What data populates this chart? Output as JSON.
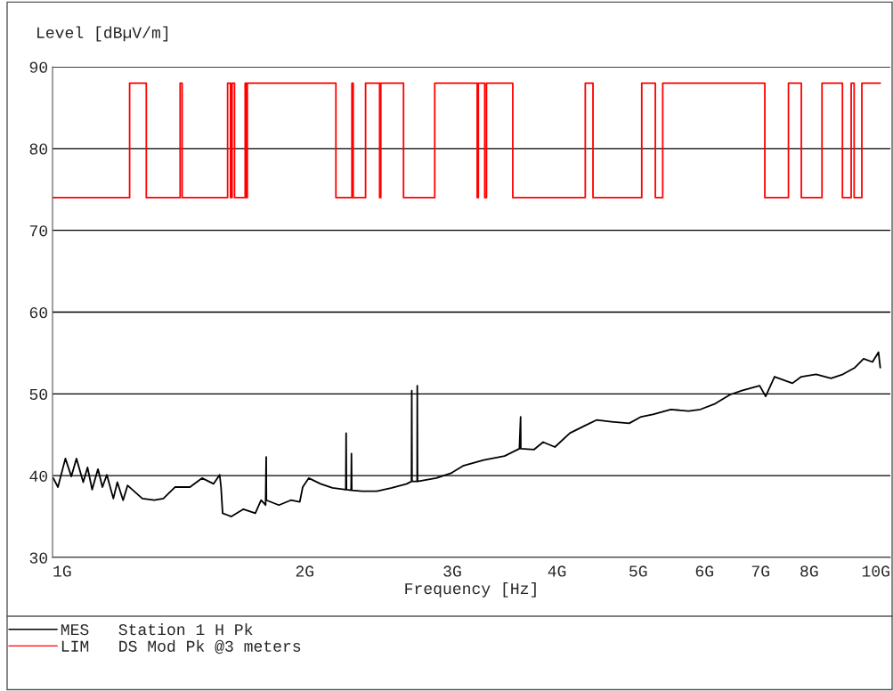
{
  "chart_data": {
    "type": "line",
    "ylabel": "Level [dBµV/m]",
    "xlabel": "Frequency [Hz]",
    "log": "x",
    "xlim": [
      1,
      10
    ],
    "xticks": [
      {
        "value": 1,
        "label": "1G"
      },
      {
        "value": 2,
        "label": "2G"
      },
      {
        "value": 3,
        "label": "3G"
      },
      {
        "value": 4,
        "label": "4G"
      },
      {
        "value": 5,
        "label": "5G"
      },
      {
        "value": 6,
        "label": "6G"
      },
      {
        "value": 7,
        "label": "7G"
      },
      {
        "value": 8,
        "label": "8G"
      },
      {
        "value": 10,
        "label": "10G"
      }
    ],
    "ylim": [
      30,
      90
    ],
    "yticks": [
      30,
      40,
      50,
      60,
      70,
      80,
      90
    ],
    "grid": "y",
    "legend": "bottom",
    "series": [
      {
        "name": "MES   Station 1 H Pk",
        "color": "#000000",
        "x": [
          1.002,
          1.015,
          1.036,
          1.053,
          1.068,
          1.088,
          1.101,
          1.115,
          1.133,
          1.147,
          1.161,
          1.182,
          1.195,
          1.214,
          1.229,
          1.28,
          1.323,
          1.356,
          1.4,
          1.459,
          1.508,
          1.557,
          1.583,
          1.589,
          1.596,
          1.635,
          1.69,
          1.746,
          1.774,
          1.796,
          1.799,
          1.8,
          1.863,
          1.925,
          1.973,
          1.989,
          2.022,
          2.089,
          2.158,
          2.239,
          2.241,
          2.243,
          2.272,
          2.274,
          2.276,
          2.342,
          2.438,
          2.541,
          2.647,
          2.682,
          2.684,
          2.686,
          2.724,
          2.725,
          2.727,
          2.871,
          2.99,
          3.09,
          3.271,
          3.464,
          3.608,
          3.62,
          3.622,
          3.757,
          3.851,
          3.978,
          4.145,
          4.317,
          4.459,
          4.646,
          4.879,
          5.041,
          5.208,
          5.469,
          5.743,
          5.934,
          6.18,
          6.436,
          6.649,
          6.983,
          7.099,
          7.274,
          7.641,
          7.83,
          8.154,
          8.496,
          8.779,
          9.069,
          9.292,
          9.522,
          9.68,
          9.727
        ],
        "values": [
          39.7,
          38.6,
          42.1,
          39.9,
          42.1,
          39.2,
          41.0,
          38.3,
          40.8,
          38.6,
          40.1,
          37.2,
          39.2,
          37.0,
          38.8,
          37.2,
          37.0,
          37.2,
          38.6,
          38.6,
          39.7,
          39.0,
          40.1,
          38.6,
          35.4,
          35.0,
          35.9,
          35.4,
          37.0,
          36.4,
          42.3,
          37.0,
          36.4,
          37.0,
          36.8,
          38.6,
          39.7,
          39.0,
          38.5,
          38.3,
          45.2,
          38.3,
          38.2,
          42.7,
          38.2,
          38.1,
          38.1,
          38.5,
          39.0,
          39.3,
          50.4,
          39.3,
          39.3,
          51.0,
          39.3,
          39.7,
          40.3,
          41.2,
          41.9,
          42.4,
          43.3,
          47.2,
          43.3,
          43.2,
          44.1,
          43.5,
          45.2,
          46.1,
          46.8,
          46.6,
          46.4,
          47.2,
          47.5,
          48.1,
          47.9,
          48.1,
          48.8,
          49.9,
          50.4,
          51.0,
          49.7,
          52.1,
          51.3,
          52.1,
          52.4,
          51.9,
          52.4,
          53.2,
          54.3,
          53.9,
          55.1,
          53.2
        ]
      },
      {
        "name": "LIM   DS Mod Pk @3 meters",
        "color": "#ff0000",
        "type": "step",
        "x": [
          1.0,
          1.236,
          1.294,
          1.42,
          1.428,
          1.618,
          1.631,
          1.638,
          1.649,
          1.698,
          1.704,
          1.708,
          2.179,
          2.277,
          2.285,
          2.364,
          2.457,
          2.465,
          2.624,
          2.859,
          3.213,
          3.223,
          3.28,
          3.296,
          3.543,
          4.324,
          4.417,
          5.05,
          5.242,
          5.35,
          7.083,
          7.558,
          7.83,
          8.288,
          8.767,
          8.98,
          9.053,
          9.247,
          9.727
        ],
        "values": [
          74,
          88,
          74,
          88,
          74,
          88,
          74,
          88,
          74,
          88,
          74,
          88,
          74,
          88,
          74,
          88,
          74,
          88,
          74,
          88,
          74,
          88,
          74,
          88,
          74,
          88,
          74,
          88,
          74,
          88,
          74,
          88,
          74,
          88,
          74,
          88,
          74,
          88,
          88
        ]
      }
    ]
  }
}
